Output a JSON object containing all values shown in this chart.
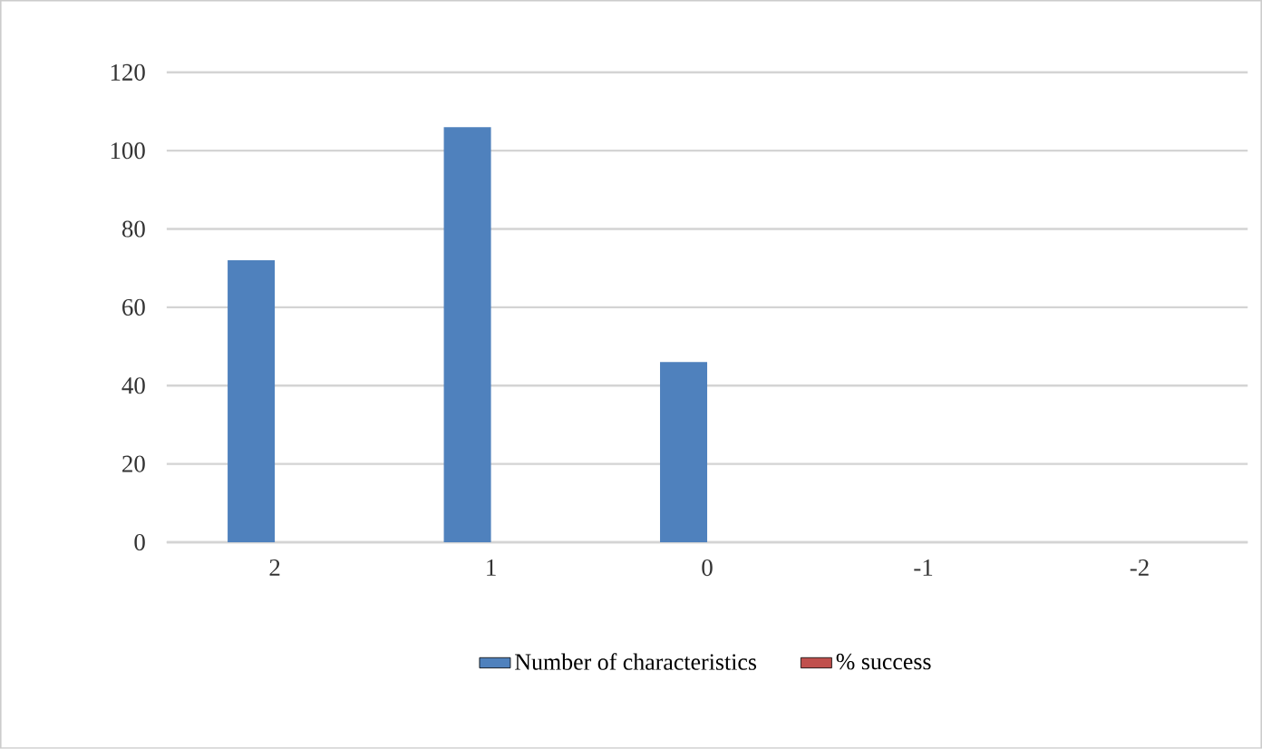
{
  "chart_data": {
    "type": "bar",
    "categories": [
      "2",
      "1",
      "0",
      "-1",
      "-2"
    ],
    "series": [
      {
        "name": "Number of characteristics",
        "color": "#4f81bd",
        "values": [
          72,
          106,
          46,
          null,
          null
        ]
      },
      {
        "name": "% success",
        "color": "#c0504d",
        "values": [
          null,
          null,
          null,
          null,
          null
        ]
      }
    ],
    "ylim": [
      0,
      120
    ],
    "yticks": [
      0,
      20,
      40,
      60,
      80,
      100,
      120
    ],
    "grid": "y",
    "legend": "bottom"
  }
}
